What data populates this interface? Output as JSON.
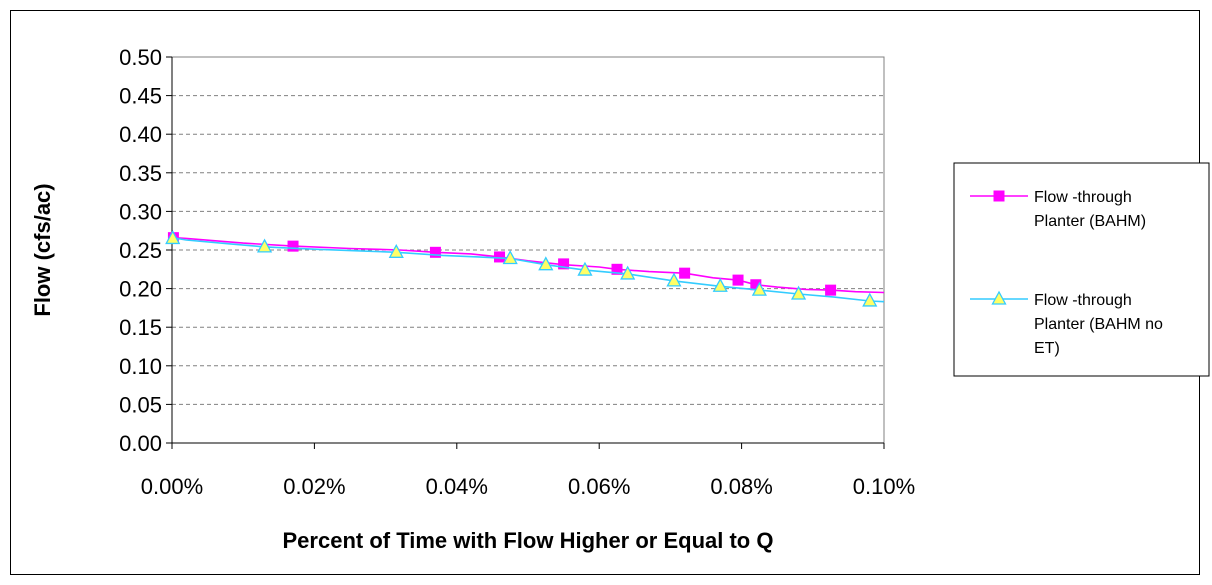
{
  "chart_data": {
    "type": "line",
    "title": "",
    "xlabel": "Percent of Time with Flow Higher or Equal to Q",
    "ylabel": "Flow (cfs/ac)",
    "xlim": [
      0.0,
      0.1
    ],
    "ylim": [
      0.0,
      0.5
    ],
    "x_ticks": [
      0.0,
      0.02,
      0.04,
      0.06,
      0.08,
      0.1
    ],
    "x_tick_labels": [
      "0.00%",
      "0.02%",
      "0.04%",
      "0.06%",
      "0.08%",
      "0.10%"
    ],
    "y_ticks": [
      0.0,
      0.05,
      0.1,
      0.15,
      0.2,
      0.25,
      0.3,
      0.35,
      0.4,
      0.45,
      0.5
    ],
    "y_tick_labels": [
      "0.00",
      "0.05",
      "0.10",
      "0.15",
      "0.20",
      "0.25",
      "0.30",
      "0.35",
      "0.40",
      "0.45",
      "0.50"
    ],
    "grid": "horizontal dashed",
    "legend_position": "right",
    "series": [
      {
        "name": "Flow -through Planter (BAHM)",
        "legend_lines": [
          "Flow -through",
          "Planter (BAHM)"
        ],
        "color": "#ff00ff",
        "marker": "square",
        "line_x": [
          0.0,
          0.002,
          0.01,
          0.017,
          0.025,
          0.032,
          0.037,
          0.042,
          0.046,
          0.05,
          0.055,
          0.06,
          0.0625,
          0.067,
          0.072,
          0.076,
          0.0795,
          0.082,
          0.085,
          0.089,
          0.0925,
          0.096,
          0.1
        ],
        "line_y": [
          0.266,
          0.265,
          0.259,
          0.255,
          0.252,
          0.25,
          0.247,
          0.245,
          0.241,
          0.236,
          0.231,
          0.228,
          0.225,
          0.222,
          0.22,
          0.214,
          0.211,
          0.205,
          0.202,
          0.199,
          0.198,
          0.196,
          0.195
        ],
        "marker_x": [
          0.0002,
          0.017,
          0.037,
          0.046,
          0.055,
          0.0625,
          0.072,
          0.0795,
          0.082,
          0.0925
        ],
        "marker_y": [
          0.266,
          0.255,
          0.247,
          0.241,
          0.232,
          0.225,
          0.22,
          0.211,
          0.205,
          0.198
        ]
      },
      {
        "name": "Flow -through Planter (BAHM no ET)",
        "legend_lines": [
          "Flow -through",
          "Planter (BAHM no",
          "ET)"
        ],
        "color": "#33ccff",
        "marker_fill": "#ffff66",
        "marker": "triangle",
        "line_x": [
          0.0,
          0.002,
          0.008,
          0.013,
          0.02,
          0.026,
          0.0315,
          0.038,
          0.043,
          0.0475,
          0.0525,
          0.058,
          0.064,
          0.0705,
          0.077,
          0.0825,
          0.088,
          0.093,
          0.098,
          0.1
        ],
        "line_y": [
          0.266,
          0.263,
          0.258,
          0.254,
          0.251,
          0.249,
          0.247,
          0.243,
          0.241,
          0.239,
          0.231,
          0.224,
          0.219,
          0.21,
          0.203,
          0.198,
          0.193,
          0.189,
          0.184,
          0.183
        ],
        "marker_x": [
          0.0001,
          0.013,
          0.0315,
          0.0475,
          0.0525,
          0.058,
          0.064,
          0.0705,
          0.077,
          0.0825,
          0.088,
          0.098
        ],
        "marker_y": [
          0.265,
          0.254,
          0.247,
          0.239,
          0.231,
          0.224,
          0.219,
          0.21,
          0.203,
          0.198,
          0.193,
          0.184
        ]
      }
    ]
  }
}
